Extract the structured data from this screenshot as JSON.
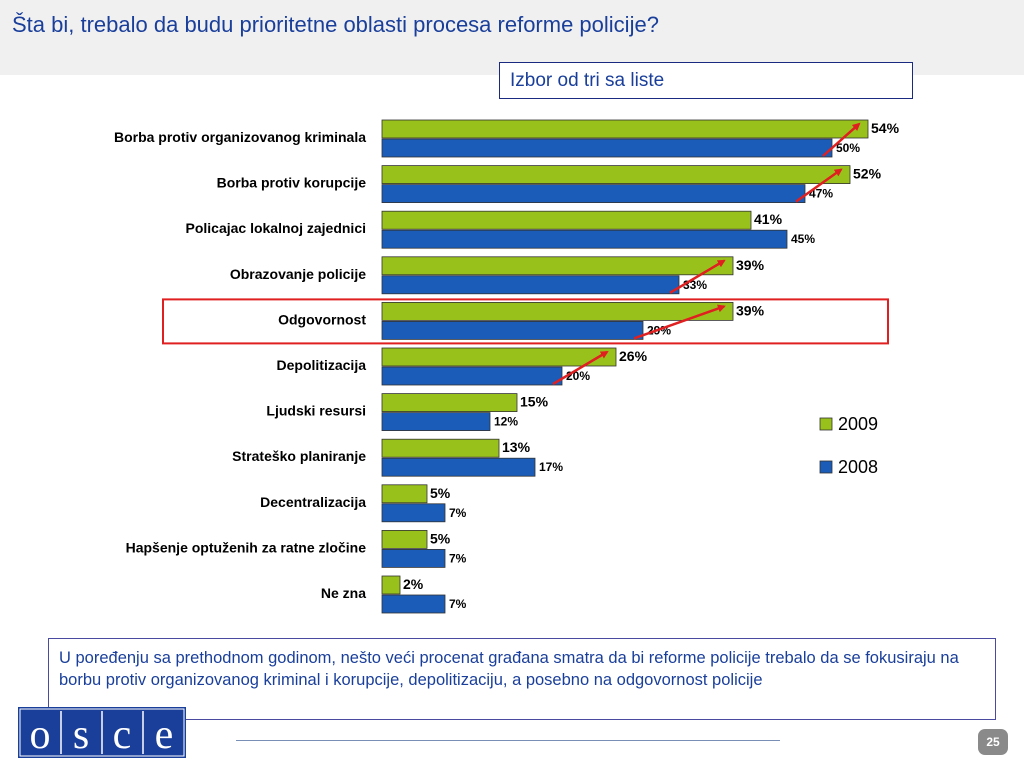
{
  "slide": {
    "title": "Šta bi, trebalo da budu prioritetne oblasti procesa reforme policije?",
    "subtitle": "Izbor od tri sa liste",
    "note": "U poređenju sa prethodnom godinom,  nešto veći procenat građana smatra da bi reforme policije trebalo da se fokusiraju na borbu protiv organizovanog kriminal i korupcije, depolitizaciju, a posebno na odgovornost policije",
    "logo_text": "OSCE",
    "page_number": "25",
    "highlighted_category": "Odgovornost"
  },
  "chart_data": {
    "type": "bar",
    "orientation": "horizontal",
    "categories": [
      "Borba protiv organizovanog kriminala",
      "Borba protiv korupcije",
      "Policajac lokalnoj zajednici",
      "Obrazovanje policije",
      "Odgovornost",
      "Depolitizacija",
      "Ljudski resursi",
      "Strateško planiranje",
      "Decentralizacija",
      "Hapšenje optuženih za ratne zločine",
      "Ne zna"
    ],
    "series": [
      {
        "name": "2009",
        "color": "#99c11c",
        "values": [
          54,
          52,
          41,
          39,
          39,
          26,
          15,
          13,
          5,
          5,
          2
        ],
        "labels": [
          "54%",
          "52%",
          "41%",
          "39%",
          "39%",
          "26%",
          "15%",
          "13%",
          "5%",
          "5%",
          "2%"
        ]
      },
      {
        "name": "2008",
        "color": "#1a5cb8",
        "values": [
          50,
          47,
          45,
          33,
          29,
          20,
          12,
          17,
          7,
          7,
          7
        ],
        "labels": [
          "50%",
          "47%",
          "45%",
          "33%",
          "29%",
          "20%",
          "12%",
          "17%",
          "7%",
          "7%",
          "7%"
        ]
      }
    ],
    "increase_arrows": [
      "Borba protiv organizovanog kriminala",
      "Borba protiv korupcije",
      "Obrazovanje policije",
      "Odgovornost",
      "Depolitizacija"
    ],
    "arrow_color": "#e02020",
    "xlim": [
      0,
      60
    ],
    "legend": "right"
  }
}
